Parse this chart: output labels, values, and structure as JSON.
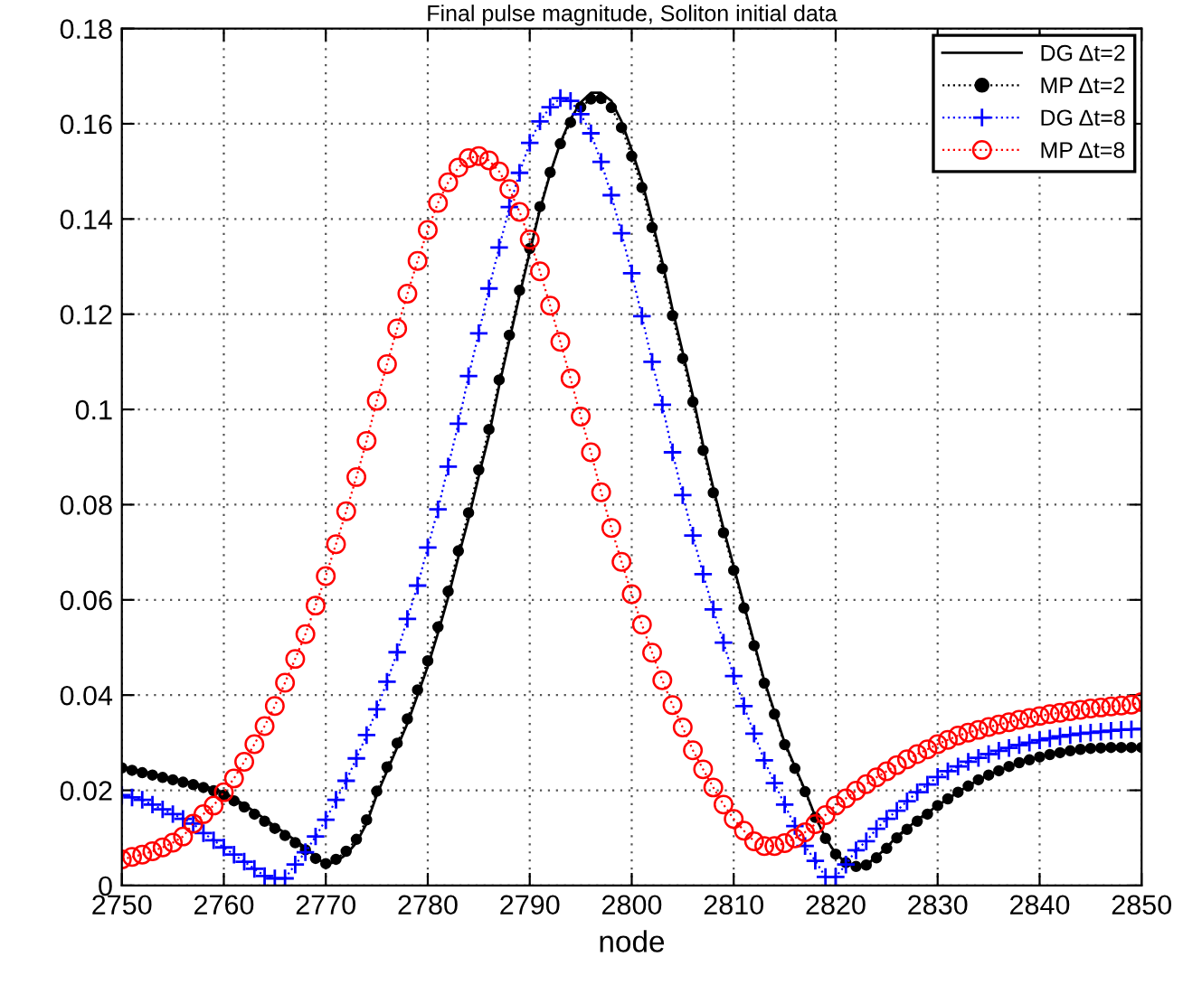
{
  "chart_data": {
    "type": "line",
    "title": "Final pulse magnitude, Soliton initial data",
    "xlabel": "node",
    "x": [
      2750,
      2751,
      2752,
      2753,
      2754,
      2755,
      2756,
      2757,
      2758,
      2759,
      2760,
      2761,
      2762,
      2763,
      2764,
      2765,
      2766,
      2767,
      2768,
      2769,
      2770,
      2771,
      2772,
      2773,
      2774,
      2775,
      2776,
      2777,
      2778,
      2779,
      2780,
      2781,
      2782,
      2783,
      2784,
      2785,
      2786,
      2787,
      2788,
      2789,
      2790,
      2791,
      2792,
      2793,
      2794,
      2795,
      2796,
      2797,
      2798,
      2799,
      2800,
      2801,
      2802,
      2803,
      2804,
      2805,
      2806,
      2807,
      2808,
      2809,
      2810,
      2811,
      2812,
      2813,
      2814,
      2815,
      2816,
      2817,
      2818,
      2819,
      2820,
      2821,
      2822,
      2823,
      2824,
      2825,
      2826,
      2827,
      2828,
      2829,
      2830,
      2831,
      2832,
      2833,
      2834,
      2835,
      2836,
      2837,
      2838,
      2839,
      2840,
      2841,
      2842,
      2843,
      2844,
      2845,
      2846,
      2847,
      2848,
      2849,
      2850
    ],
    "series": [
      {
        "name": "DG Δt=2",
        "color": "#000000",
        "marker": "none",
        "line_style": "solid",
        "values": [
          0.025,
          0.0245,
          0.024,
          0.0235,
          0.023,
          0.0225,
          0.022,
          0.0215,
          0.021,
          0.0203,
          0.0195,
          0.0183,
          0.017,
          0.0155,
          0.014,
          0.0125,
          0.011,
          0.0095,
          0.008,
          0.006,
          0.0044,
          0.005,
          0.0065,
          0.009,
          0.013,
          0.019,
          0.024,
          0.029,
          0.034,
          0.04,
          0.046,
          0.053,
          0.0605,
          0.069,
          0.077,
          0.086,
          0.0945,
          0.105,
          0.1145,
          0.124,
          0.133,
          0.142,
          0.1495,
          0.156,
          0.161,
          0.1645,
          0.1665,
          0.1665,
          0.1648,
          0.1605,
          0.1545,
          0.148,
          0.1396,
          0.131,
          0.121,
          0.112,
          0.1028,
          0.0925,
          0.0835,
          0.075,
          0.067,
          0.059,
          0.051,
          0.043,
          0.0365,
          0.03,
          0.025,
          0.02,
          0.0145,
          0.01,
          0.0067,
          0.0048,
          0.0041,
          0.0044,
          0.006,
          0.008,
          0.0103,
          0.012,
          0.0138,
          0.0153,
          0.0168,
          0.0182,
          0.0196,
          0.0209,
          0.0222,
          0.0232,
          0.0241,
          0.025,
          0.0258,
          0.0264,
          0.027,
          0.0275,
          0.0279,
          0.0283,
          0.0286,
          0.0288,
          0.0289,
          0.029,
          0.029,
          0.029,
          0.029
        ]
      },
      {
        "name": "MP Δt=2",
        "color": "#000000",
        "marker": "circle",
        "line_style": "dotted",
        "values": [
          0.0247,
          0.0242,
          0.0237,
          0.0232,
          0.0227,
          0.0222,
          0.0217,
          0.0212,
          0.0206,
          0.0199,
          0.019,
          0.0178,
          0.0165,
          0.015,
          0.0135,
          0.012,
          0.0105,
          0.009,
          0.0075,
          0.0057,
          0.0046,
          0.0055,
          0.0072,
          0.0097,
          0.0138,
          0.0198,
          0.0249,
          0.0299,
          0.035,
          0.0411,
          0.0472,
          0.0543,
          0.0618,
          0.0703,
          0.0783,
          0.0873,
          0.0958,
          0.1062,
          0.1156,
          0.125,
          0.1338,
          0.1426,
          0.1498,
          0.1558,
          0.1603,
          0.1635,
          0.1652,
          0.1653,
          0.1634,
          0.1592,
          0.1532,
          0.1466,
          0.1382,
          0.1296,
          0.1197,
          0.1107,
          0.1016,
          0.0914,
          0.0825,
          0.0741,
          0.0662,
          0.0583,
          0.0504,
          0.0425,
          0.036,
          0.0296,
          0.0246,
          0.0197,
          0.0143,
          0.0099,
          0.0066,
          0.0048,
          0.004,
          0.0043,
          0.0058,
          0.0078,
          0.01,
          0.0118,
          0.0135,
          0.015,
          0.0168,
          0.0182,
          0.0196,
          0.0209,
          0.0222,
          0.0232,
          0.0241,
          0.025,
          0.0258,
          0.0264,
          0.027,
          0.0275,
          0.0279,
          0.0283,
          0.0286,
          0.0288,
          0.0289,
          0.029,
          0.029,
          0.029,
          0.029
        ]
      },
      {
        "name": "DG Δt=8",
        "color": "#0000ff",
        "marker": "cross",
        "line_style": "dotted",
        "values": [
          0.019,
          0.0185,
          0.018,
          0.017,
          0.016,
          0.015,
          0.014,
          0.013,
          0.011,
          0.0095,
          0.008,
          0.0065,
          0.005,
          0.0035,
          0.002,
          0.0015,
          0.0015,
          0.0044,
          0.007,
          0.0103,
          0.0138,
          0.018,
          0.022,
          0.0267,
          0.0316,
          0.037,
          0.0428,
          0.049,
          0.056,
          0.063,
          0.071,
          0.079,
          0.088,
          0.097,
          0.107,
          0.116,
          0.1254,
          0.134,
          0.1425,
          0.1497,
          0.156,
          0.1605,
          0.1635,
          0.1654,
          0.1648,
          0.162,
          0.158,
          0.152,
          0.145,
          0.137,
          0.1286,
          0.1196,
          0.11,
          0.101,
          0.091,
          0.082,
          0.0735,
          0.0654,
          0.058,
          0.051,
          0.044,
          0.0377,
          0.0319,
          0.0263,
          0.0215,
          0.017,
          0.0125,
          0.0083,
          0.0052,
          0.0018,
          0.0018,
          0.0044,
          0.0074,
          0.0093,
          0.0119,
          0.014,
          0.0157,
          0.0177,
          0.0196,
          0.0212,
          0.0228,
          0.024,
          0.025,
          0.026,
          0.0268,
          0.0276,
          0.0283,
          0.0289,
          0.0295,
          0.03,
          0.0305,
          0.0309,
          0.0313,
          0.0316,
          0.0319,
          0.0321,
          0.0323,
          0.0325,
          0.0327,
          0.0328,
          0.0329
        ]
      },
      {
        "name": "MP Δt=8",
        "color": "#ff0000",
        "marker": "circle",
        "line_style": "dotted",
        "values": [
          0.0055,
          0.006,
          0.0065,
          0.0072,
          0.008,
          0.009,
          0.0103,
          0.013,
          0.015,
          0.0168,
          0.0196,
          0.0225,
          0.026,
          0.0297,
          0.0335,
          0.0377,
          0.0426,
          0.0476,
          0.0528,
          0.0588,
          0.065,
          0.0717,
          0.0786,
          0.0858,
          0.0934,
          0.1018,
          0.1095,
          0.117,
          0.1243,
          0.1312,
          0.1377,
          0.1434,
          0.1477,
          0.1508,
          0.1528,
          0.1532,
          0.1523,
          0.15,
          0.1463,
          0.1415,
          0.1357,
          0.129,
          0.1218,
          0.1142,
          0.1065,
          0.0985,
          0.091,
          0.0826,
          0.0751,
          0.068,
          0.0612,
          0.0548,
          0.0489,
          0.0431,
          0.0379,
          0.0332,
          0.0284,
          0.0244,
          0.0206,
          0.017,
          0.014,
          0.0115,
          0.0093,
          0.0083,
          0.0083,
          0.0089,
          0.0099,
          0.0112,
          0.0129,
          0.0148,
          0.0168,
          0.0183,
          0.0199,
          0.0213,
          0.0227,
          0.024,
          0.0253,
          0.0265,
          0.0276,
          0.0286,
          0.0297,
          0.0306,
          0.0315,
          0.0321,
          0.0327,
          0.0333,
          0.0338,
          0.0343,
          0.0348,
          0.0352,
          0.0356,
          0.036,
          0.0363,
          0.0366,
          0.0369,
          0.0372,
          0.0374,
          0.0376,
          0.0378,
          0.038,
          0.0385
        ]
      }
    ],
    "xlim": [
      2750,
      2850
    ],
    "xticks": [
      2750,
      2760,
      2770,
      2780,
      2790,
      2800,
      2810,
      2820,
      2830,
      2840,
      2850
    ],
    "ylim": [
      0,
      0.18
    ],
    "yticks": [
      0,
      0.02,
      0.04,
      0.06,
      0.08,
      0.1,
      0.12,
      0.14,
      0.16,
      0.18
    ],
    "grid": true,
    "legend": "top right"
  }
}
